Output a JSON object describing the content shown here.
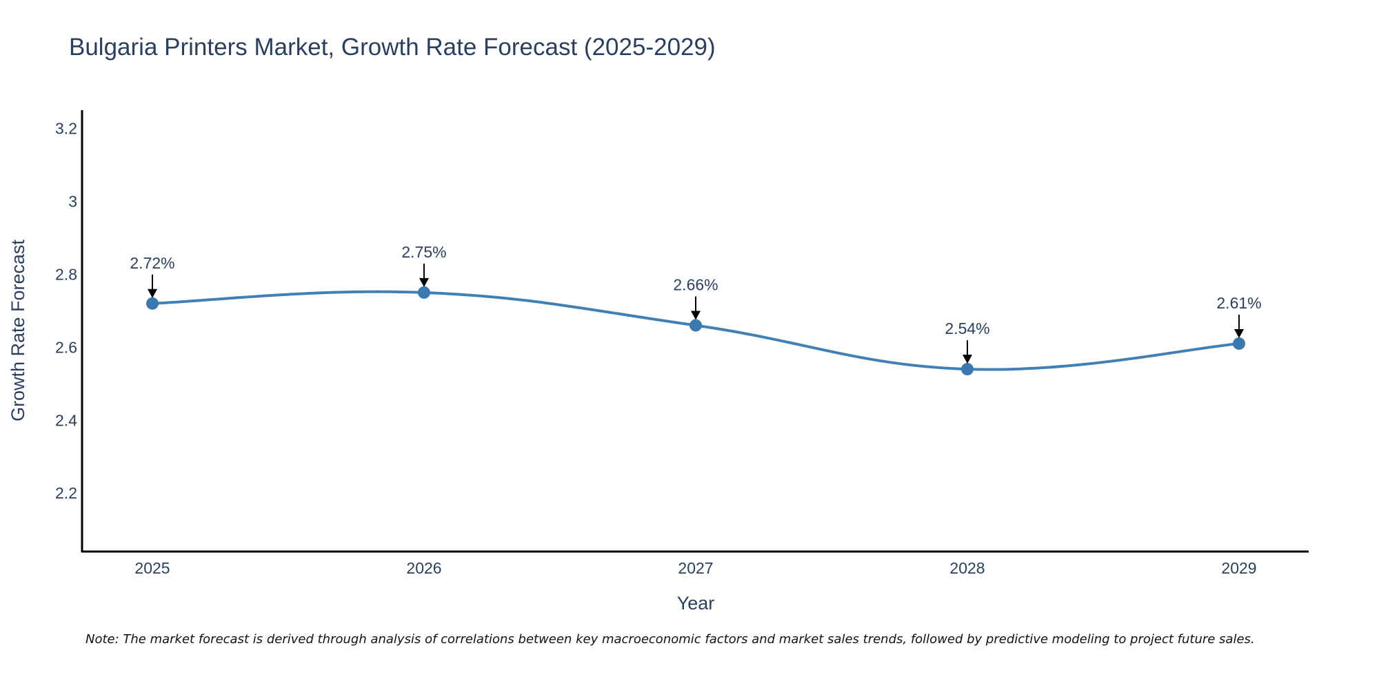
{
  "chart_data": {
    "type": "line",
    "title": "Bulgaria Printers Market, Growth Rate Forecast (2025-2029)",
    "xlabel": "Year",
    "ylabel": "Growth Rate Forecast",
    "x": [
      "2025",
      "2026",
      "2027",
      "2028",
      "2029"
    ],
    "values": [
      2.72,
      2.75,
      2.66,
      2.54,
      2.61
    ],
    "data_labels": [
      "2.72%",
      "2.75%",
      "2.66%",
      "2.54%",
      "2.61%"
    ],
    "yticks": [
      2.2,
      2.4,
      2.6,
      2.8,
      3,
      3.2
    ],
    "ytick_labels": [
      "2.2",
      "2.4",
      "2.6",
      "2.8",
      "3",
      "3.2"
    ],
    "ylim": [
      2.04,
      3.25
    ],
    "grid": false,
    "legend": "none"
  },
  "note": "Note: The market forecast is derived through analysis of correlations between key macroeconomic factors and market sales trends, followed by predictive modeling to project future sales.",
  "colors": {
    "line": "#4180b4",
    "marker": "#3a78b0",
    "text": "#2a3f5f",
    "axis": "#000000"
  }
}
